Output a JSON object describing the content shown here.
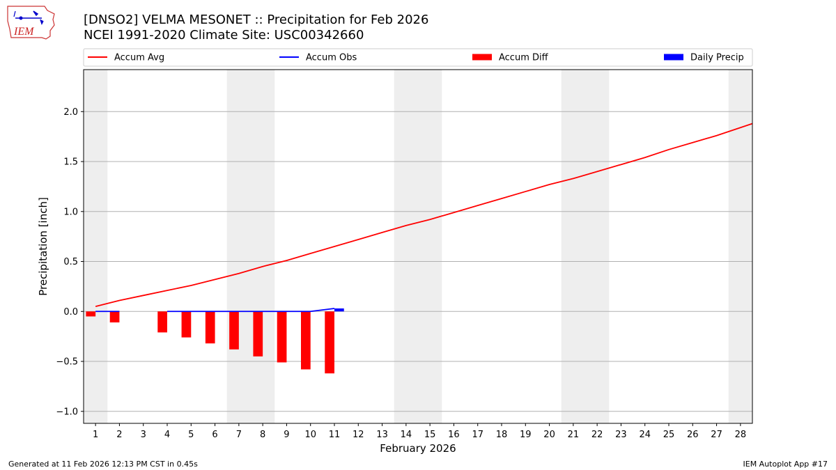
{
  "header": {
    "title": "[DNSO2] VELMA MESONET :: Precipitation for Feb 2026",
    "subtitle": "NCEI 1991-2020 Climate Site: USC00342660"
  },
  "logo": {
    "text": "IEM"
  },
  "footer": {
    "generated": "Generated at 11 Feb 2026 12:13 PM CST in 0.45s",
    "app": "IEM Autoplot App #17"
  },
  "colors": {
    "avg": "#ff0000",
    "obs": "#0000ff",
    "diff": "#ff0000",
    "daily": "#0000ff",
    "weekend": "#eeeeee",
    "grid": "#b0b0b0"
  },
  "chart_data": {
    "type": "bar",
    "xlabel": "February 2026",
    "ylabel": "Precipitation [inch]",
    "xlim": [
      0.5,
      28.5
    ],
    "ylim": [
      -1.12,
      2.42
    ],
    "yticks": [
      -1.0,
      -0.5,
      0.0,
      0.5,
      1.0,
      1.5,
      2.0
    ],
    "ytick_labels": [
      "−1.0",
      "−0.5",
      "0.0",
      "0.5",
      "1.0",
      "1.5",
      "2.0"
    ],
    "x": [
      1,
      2,
      3,
      4,
      5,
      6,
      7,
      8,
      9,
      10,
      11,
      12,
      13,
      14,
      15,
      16,
      17,
      18,
      19,
      20,
      21,
      22,
      23,
      24,
      25,
      26,
      27,
      28
    ],
    "xtick_labels": [
      "1",
      "2",
      "3",
      "4",
      "5",
      "6",
      "7",
      "8",
      "9",
      "10",
      "11",
      "12",
      "13",
      "14",
      "15",
      "16",
      "17",
      "18",
      "19",
      "20",
      "21",
      "22",
      "23",
      "24",
      "25",
      "26",
      "27",
      "28"
    ],
    "grid": "horizontal",
    "legend": {
      "placement": "top",
      "entries": [
        "Accum Avg",
        "Accum Obs",
        "Accum Diff",
        "Daily Precip"
      ]
    },
    "weekend_shading": [
      [
        0.5,
        1.5
      ],
      [
        6.5,
        8.5
      ],
      [
        13.5,
        15.5
      ],
      [
        20.5,
        22.5
      ],
      [
        27.5,
        28.5
      ]
    ],
    "series": [
      {
        "name": "Accum Avg",
        "kind": "line",
        "color": "#ff0000",
        "x": [
          1,
          2,
          3,
          4,
          5,
          6,
          7,
          8,
          9,
          10,
          11,
          12,
          13,
          14,
          15,
          16,
          17,
          18,
          19,
          20,
          21,
          22,
          23,
          24,
          25,
          26,
          27,
          28,
          28.5
        ],
        "values": [
          0.05,
          0.11,
          0.16,
          0.21,
          0.26,
          0.32,
          0.38,
          0.45,
          0.51,
          0.58,
          0.65,
          0.72,
          0.79,
          0.86,
          0.92,
          0.99,
          1.06,
          1.13,
          1.2,
          1.27,
          1.33,
          1.4,
          1.47,
          1.54,
          1.62,
          1.69,
          1.76,
          1.84,
          1.88
        ]
      },
      {
        "name": "Accum Obs",
        "kind": "line",
        "color": "#0000ff",
        "segments": [
          {
            "x": [
              1,
              2
            ],
            "values": [
              0.0,
              0.0
            ]
          },
          {
            "x": [
              4,
              5,
              6,
              7,
              8,
              9,
              10,
              11
            ],
            "values": [
              0.0,
              0.0,
              0.0,
              0.0,
              0.0,
              0.0,
              0.0,
              0.03
            ]
          }
        ]
      },
      {
        "name": "Accum Diff",
        "kind": "bar",
        "color": "#ff0000",
        "x": [
          1,
          2,
          4,
          5,
          6,
          7,
          8,
          9,
          10,
          11
        ],
        "values": [
          -0.05,
          -0.11,
          -0.21,
          -0.26,
          -0.32,
          -0.38,
          -0.45,
          -0.51,
          -0.58,
          -0.62
        ]
      },
      {
        "name": "Daily Precip",
        "kind": "bar",
        "color": "#0000ff",
        "x": [
          11
        ],
        "values": [
          0.03
        ]
      }
    ]
  }
}
